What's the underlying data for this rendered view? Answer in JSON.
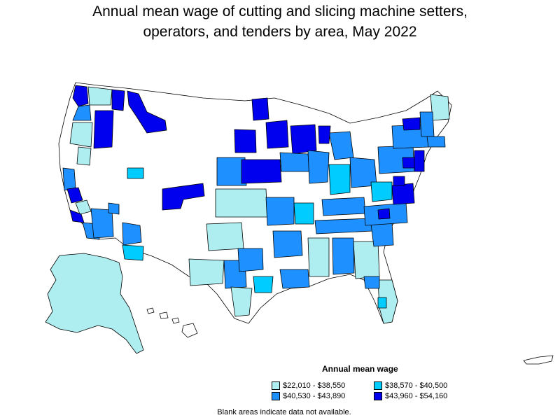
{
  "title_line1": "Annual mean wage of cutting and slicing machine setters,",
  "title_line2": "operators, and tenders by area, May 2022",
  "legend": {
    "title": "Annual mean wage",
    "items": [
      {
        "label": "$22,010 - $38,550",
        "color": "#aeeef0"
      },
      {
        "label": "$38,570 - $40,500",
        "color": "#00ccff"
      },
      {
        "label": "$40,530 - $43,890",
        "color": "#1e90ff"
      },
      {
        "label": "$43,960 - $54,160",
        "color": "#0000ee"
      }
    ]
  },
  "note": "Blank areas indicate data not available.",
  "colors": {
    "no_data": "#ffffff",
    "border": "#000000"
  }
}
